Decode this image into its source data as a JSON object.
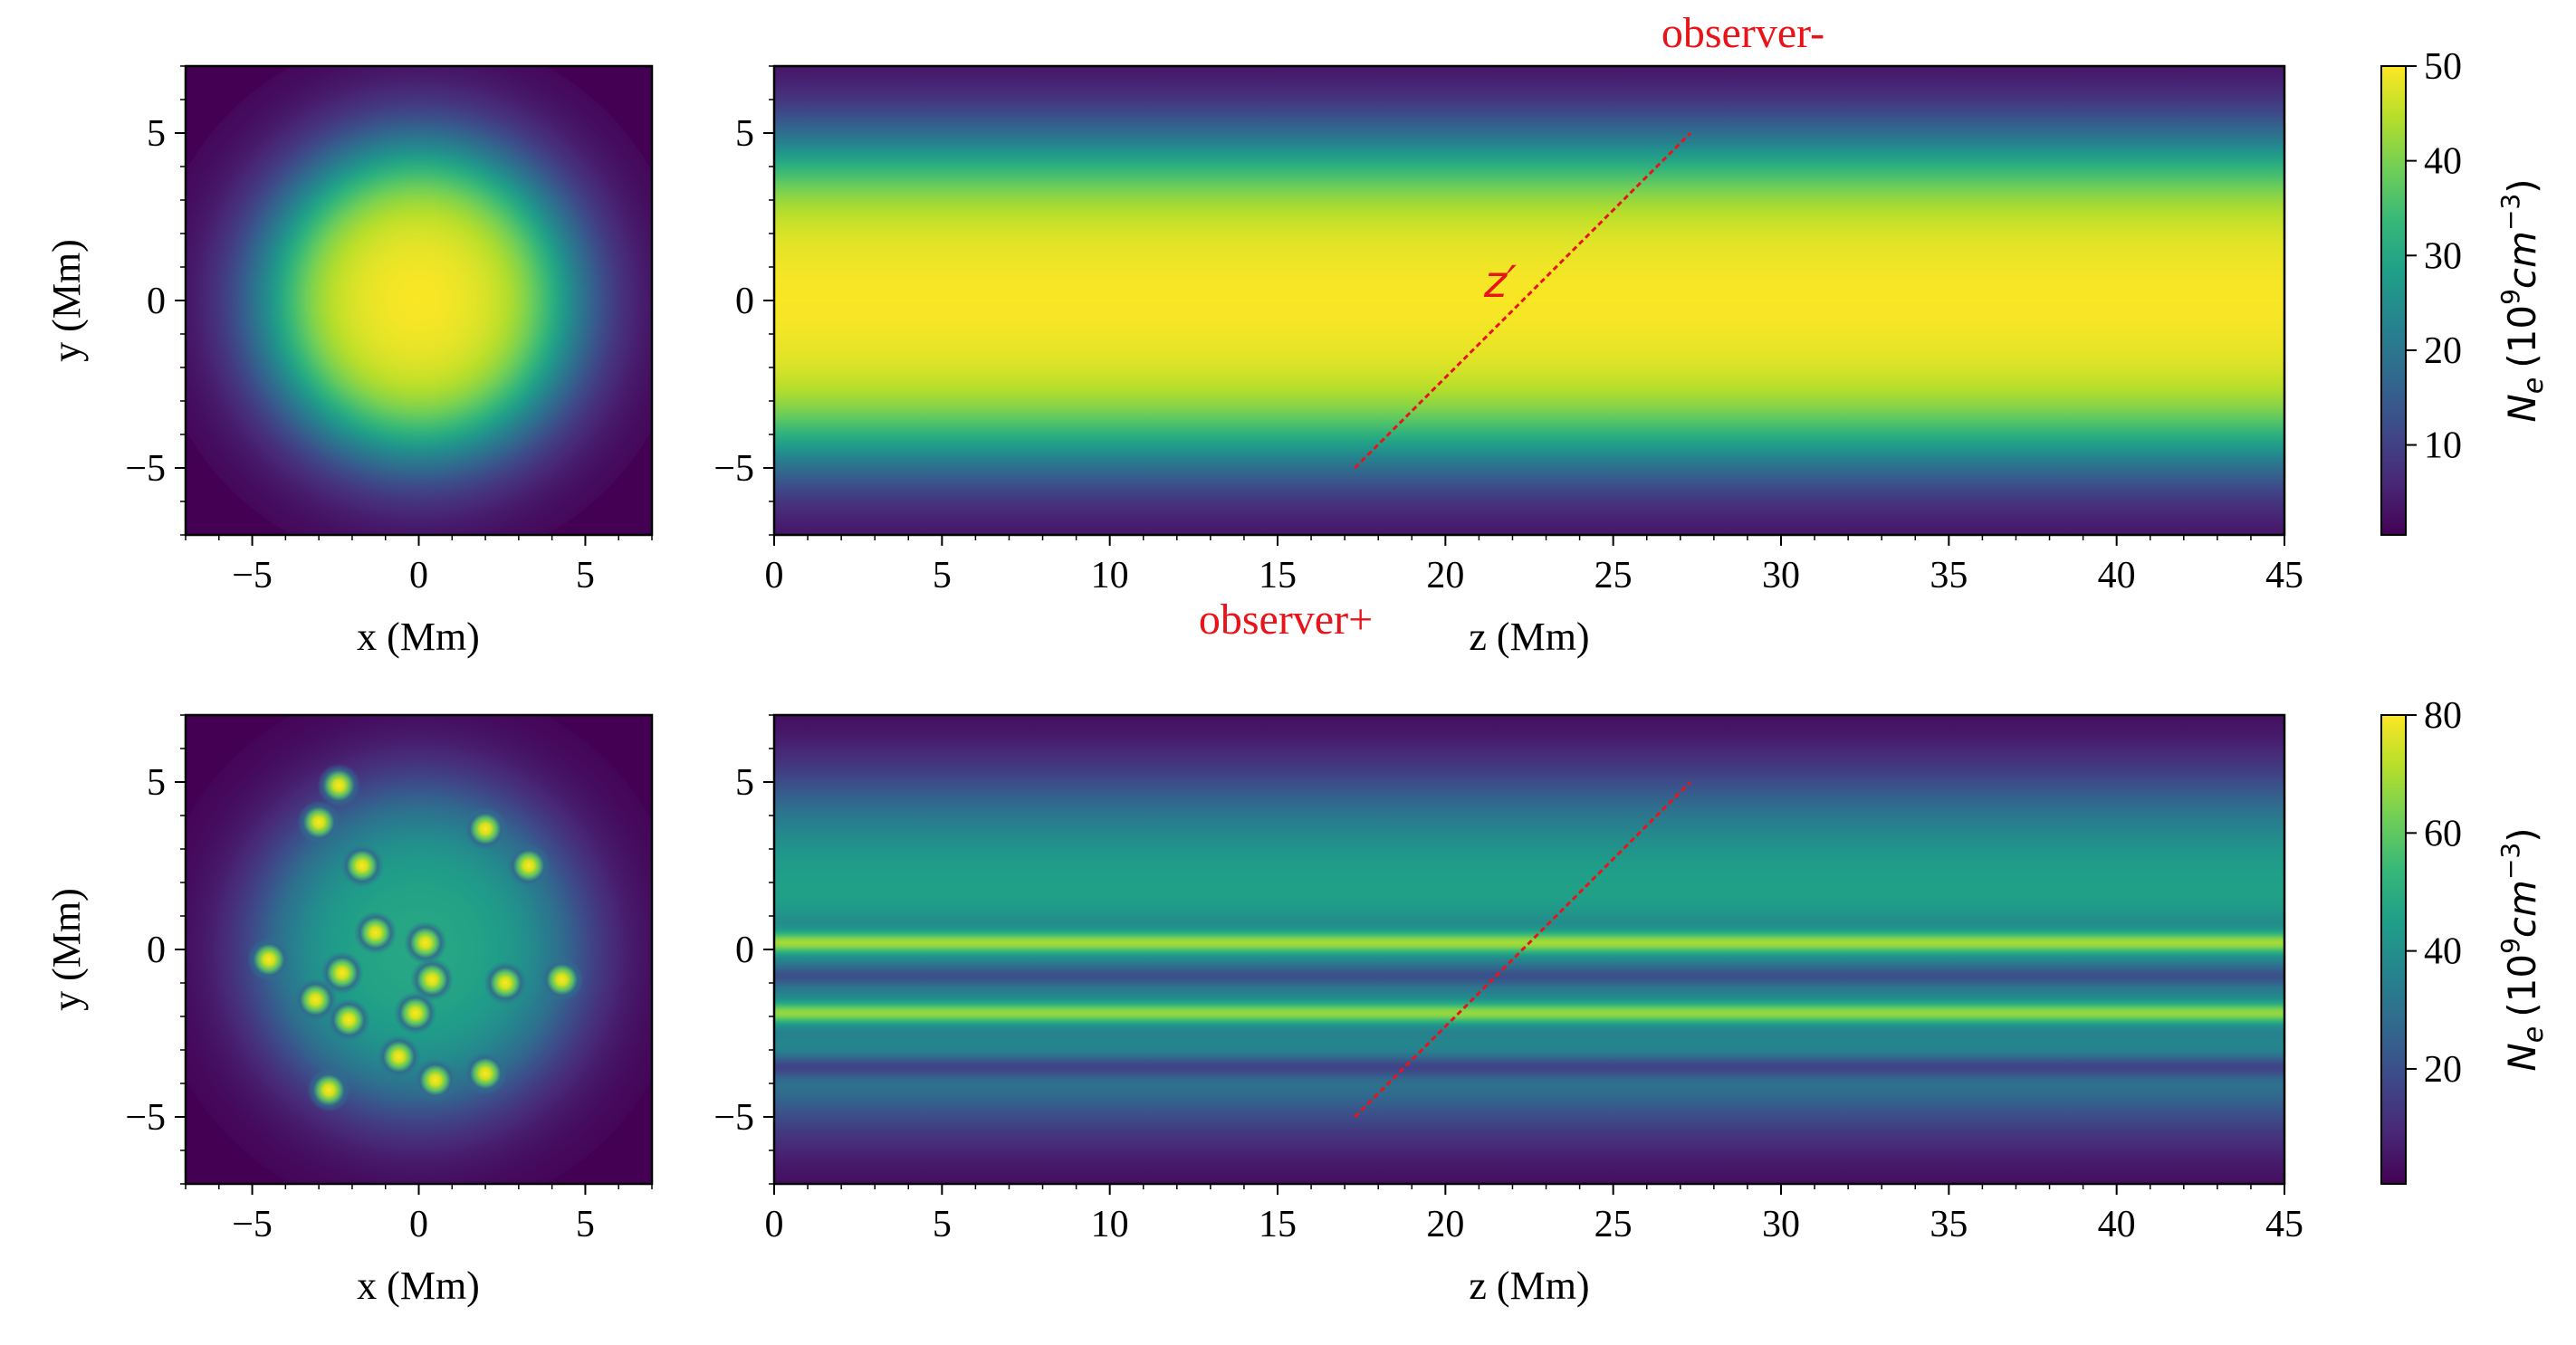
{
  "colors": {
    "viridis": [
      "#440154",
      "#482878",
      "#3e4989",
      "#31688e",
      "#26828e",
      "#1f9e89",
      "#35b779",
      "#6ece58",
      "#b5de2b",
      "#fde725"
    ],
    "annotation": "#e8141a"
  },
  "chart_data": [
    {
      "id": "top-cross-section",
      "type": "heatmap",
      "title": "",
      "xlabel": "x (Mm)",
      "ylabel": "y (Mm)",
      "xlim": [
        -7,
        7
      ],
      "ylim": [
        -7,
        7
      ],
      "xticks": [
        -5,
        0,
        5
      ],
      "yticks": [
        -5,
        0,
        5
      ],
      "xtick_labels": [
        "−5",
        "0",
        "5"
      ],
      "ytick_labels": [
        "−5",
        "0",
        "5"
      ],
      "field": {
        "kind": "gaussian-tube",
        "center": [
          0,
          0
        ],
        "radius": 4.5,
        "edge_width": 0.9,
        "peak": 50
      }
    },
    {
      "id": "top-longitudinal",
      "type": "heatmap",
      "title": "",
      "xlabel": "z (Mm)",
      "ylabel": "",
      "xlim": [
        0,
        45
      ],
      "ylim": [
        -7,
        7
      ],
      "xticks": [
        0,
        5,
        10,
        15,
        20,
        25,
        30,
        35,
        40,
        45
      ],
      "yticks": [
        -5,
        0,
        5
      ],
      "xtick_labels": [
        "0",
        "5",
        "10",
        "15",
        "20",
        "25",
        "30",
        "35",
        "40",
        "45"
      ],
      "ytick_labels": [
        "−5",
        "0",
        "5"
      ],
      "line_of_sight": {
        "start": [
          17.3,
          -5
        ],
        "end": [
          27.3,
          5
        ]
      },
      "annotations": {
        "observer_minus": "observer-",
        "observer_plus": "observer+",
        "los_label": "z′"
      }
    },
    {
      "id": "top-colorbar",
      "type": "colorbar",
      "range": [
        0.5,
        50
      ],
      "ticks": [
        10,
        20,
        30,
        40,
        50
      ],
      "tick_labels": [
        "10",
        "20",
        "30",
        "40",
        "50"
      ],
      "label_main": "N",
      "label_sub": "e",
      "label_unit_open": "(10",
      "label_unit_exp": "9",
      "label_unit_mid": "cm",
      "label_unit_exp2": "−3",
      "label_unit_close": ")"
    },
    {
      "id": "bottom-cross-section",
      "type": "heatmap",
      "title": "",
      "xlabel": "x (Mm)",
      "ylabel": "y (Mm)",
      "xlim": [
        -7,
        7
      ],
      "ylim": [
        -7,
        7
      ],
      "xticks": [
        -5,
        0,
        5
      ],
      "yticks": [
        -5,
        0,
        5
      ],
      "xtick_labels": [
        "−5",
        "0",
        "5"
      ],
      "ytick_labels": [
        "−5",
        "0",
        "5"
      ],
      "field": {
        "kind": "strand-bundle",
        "background": 0.6,
        "strands": [
          [
            -2.4,
            4.9
          ],
          [
            -3.0,
            3.8
          ],
          [
            -1.7,
            2.5
          ],
          [
            -1.3,
            0.5
          ],
          [
            0.2,
            0.2
          ],
          [
            -2.3,
            -0.7
          ],
          [
            0.4,
            -0.9
          ],
          [
            -4.5,
            -0.3
          ],
          [
            -3.1,
            -1.5
          ],
          [
            -2.1,
            -2.1
          ],
          [
            -0.1,
            -1.9
          ],
          [
            -0.6,
            -3.2
          ],
          [
            0.5,
            -3.9
          ],
          [
            -2.7,
            -4.2
          ],
          [
            2.0,
            3.6
          ],
          [
            3.3,
            2.5
          ],
          [
            2.6,
            -1.0
          ],
          [
            4.3,
            -0.9
          ],
          [
            2.0,
            -3.7
          ]
        ]
      }
    },
    {
      "id": "bottom-longitudinal",
      "type": "heatmap",
      "title": "",
      "xlabel": "z (Mm)",
      "ylabel": "",
      "xlim": [
        0,
        45
      ],
      "ylim": [
        -7,
        7
      ],
      "xticks": [
        0,
        5,
        10,
        15,
        20,
        25,
        30,
        35,
        40,
        45
      ],
      "yticks": [
        -5,
        0,
        5
      ],
      "xtick_labels": [
        "0",
        "5",
        "10",
        "15",
        "20",
        "25",
        "30",
        "35",
        "40",
        "45"
      ],
      "ytick_labels": [
        "−5",
        "0",
        "5"
      ],
      "line_of_sight": {
        "start": [
          17.3,
          -5
        ],
        "end": [
          27.3,
          5
        ]
      },
      "bright_bands_y": [
        0.2,
        -1.9
      ],
      "dim_bands_y": [
        -0.8,
        -3.5
      ]
    },
    {
      "id": "bottom-colorbar",
      "type": "colorbar",
      "range": [
        0.5,
        80
      ],
      "ticks": [
        20,
        40,
        60,
        80
      ],
      "tick_labels": [
        "20",
        "40",
        "60",
        "80"
      ],
      "label_main": "N",
      "label_sub": "e",
      "label_unit_open": "(10",
      "label_unit_exp": "9",
      "label_unit_mid": "cm",
      "label_unit_exp2": "−3",
      "label_unit_close": ")"
    }
  ]
}
